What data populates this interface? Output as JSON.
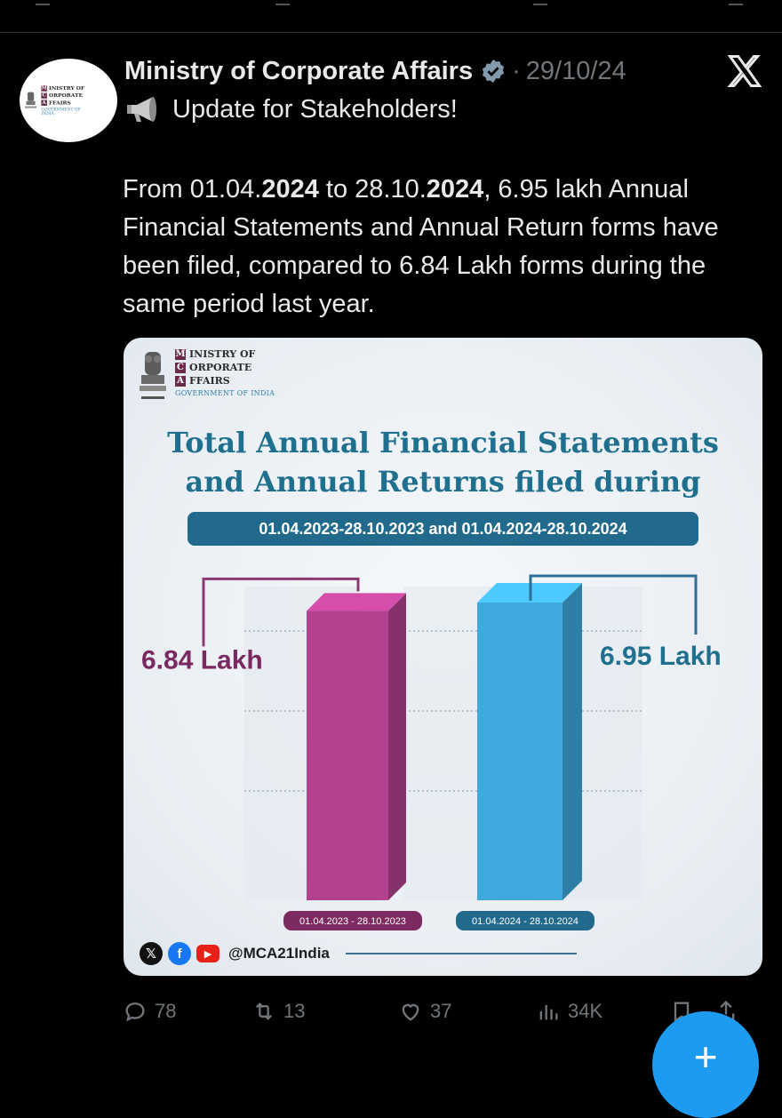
{
  "tweet": {
    "author_name": "Ministry of Corporate Affairs",
    "separator": "·",
    "date": "29/10/24",
    "headline": "Update for Stakeholders!",
    "body_parts": {
      "p1": "From 01.04.",
      "y1": "2024",
      "p2": " to 28.10.",
      "y2": "2024",
      "p3": ", 6.95 lakh Annual Financial Statements and Annual Return forms have been filed, compared to 6.84 Lakh forms during the same period last year."
    }
  },
  "card": {
    "logo": {
      "line1": "INISTRY OF",
      "line2": "ORPORATE",
      "line3": "FFAIRS",
      "letter1": "M",
      "letter2": "C",
      "letter3": "A",
      "gov": "GOVERNMENT OF INDIA"
    },
    "title_line1": "Total Annual Financial Statements",
    "title_line2": "and Annual Returns filed during",
    "date_range": "01.04.2023-28.10.2023 and 01.04.2024-28.10.2024",
    "handle": "@MCA21India"
  },
  "chart_data": {
    "type": "bar",
    "categories": [
      "01.04.2023 - 28.10.2023",
      "01.04.2024 - 28.10.2024"
    ],
    "values": [
      6.84,
      6.95
    ],
    "data_labels": [
      "6.84 Lakh",
      "6.95 Lakh"
    ],
    "colors": [
      "#b2418f",
      "#3fa8dd"
    ],
    "title": "Total Annual Financial Statements and Annual Returns filed during",
    "grid": true
  },
  "actions": {
    "replies": "78",
    "reposts": "13",
    "likes": "37",
    "views": "34K"
  },
  "fab_label": "+",
  "colors": {
    "accent": "#1d9bf0",
    "bar_2023": "#b2418f",
    "bar_2024": "#3fa8dd",
    "title_blue": "#1f6f8f"
  }
}
